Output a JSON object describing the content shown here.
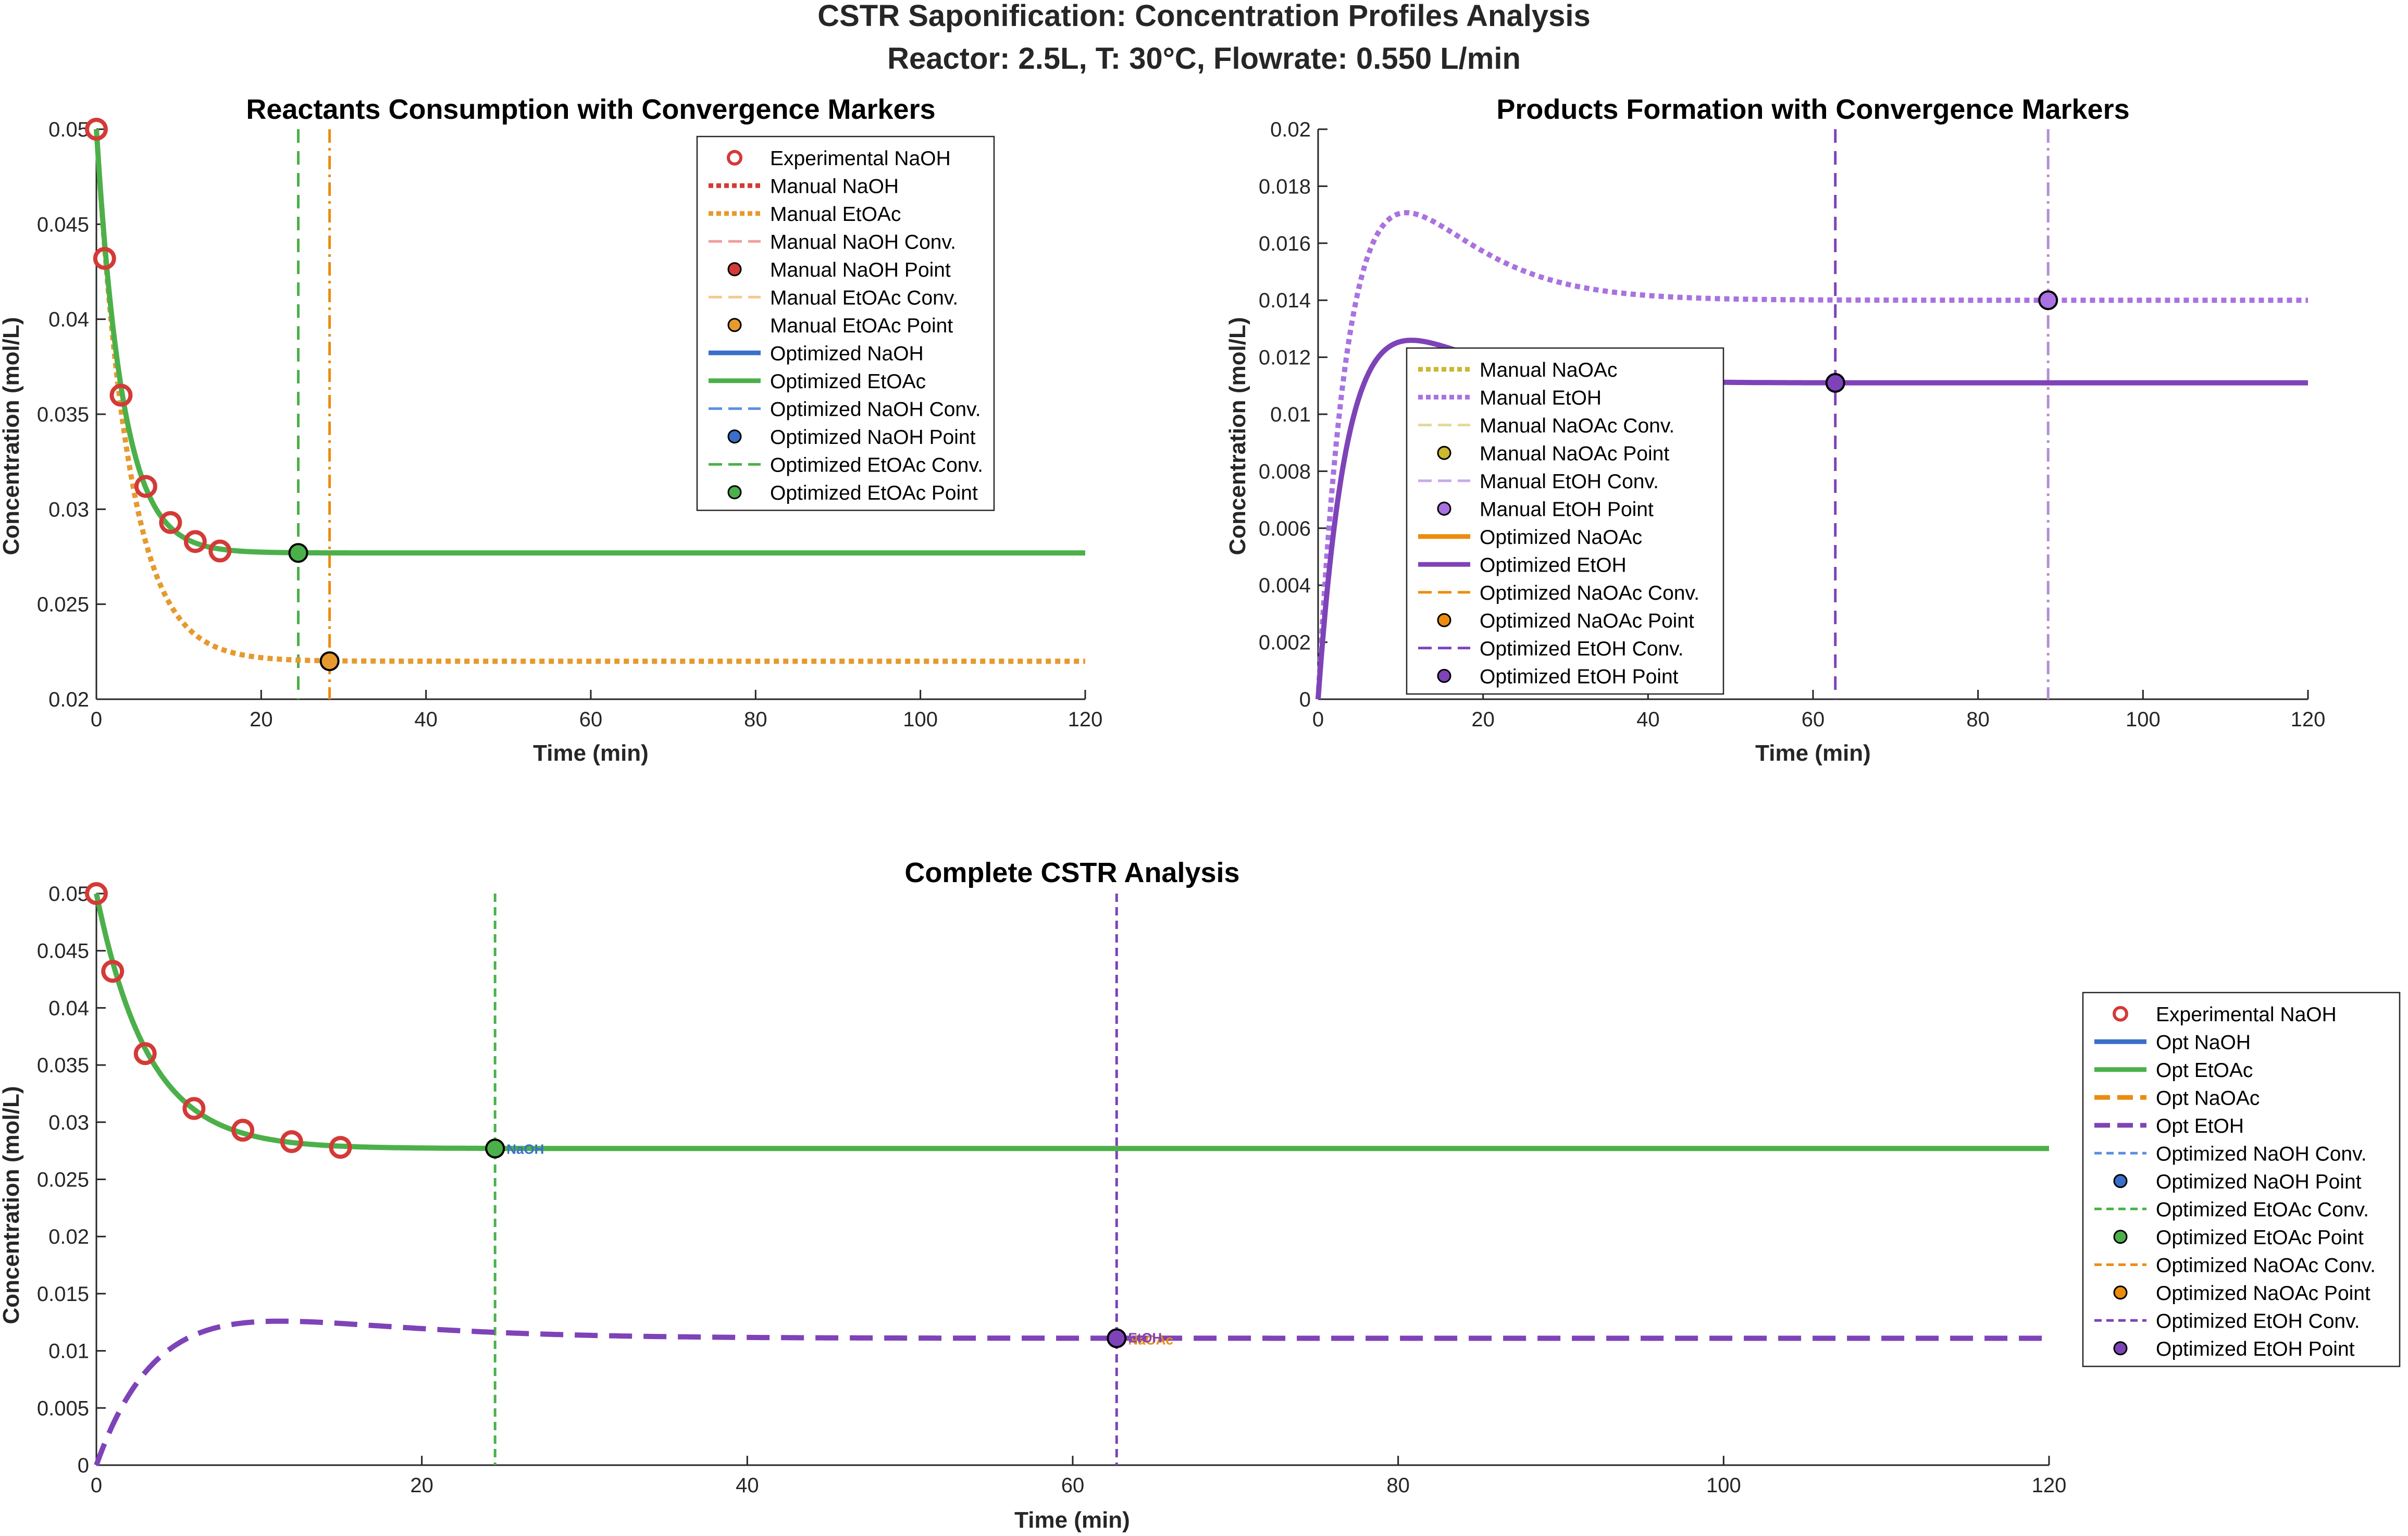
{
  "suptitle": {
    "line1": "CSTR Saponification: Concentration Profiles Analysis",
    "line2": "Reactor: 2.5L, T: 30°C, Flowrate: 0.550 L/min"
  },
  "colors": {
    "naoh": "#d43a37",
    "naoh_light": "#f09d9b",
    "etoac_manual": "#e69a2e",
    "etoac_manual_light": "#f2c98e",
    "naoac_manual": "#cbb730",
    "naoac_manual_light": "#e3d89a",
    "etoh_manual": "#a972e0",
    "etoh_manual_light": "#c9a8ec",
    "opt_naoh": "#3a6fc9",
    "opt_naoh_light": "#5b8fe0",
    "opt_etoac": "#4cb04a",
    "opt_naoac": "#eb8c0f",
    "opt_etoh": "#7e43b8",
    "opt_etoh_light": "#b48fcf"
  },
  "chart_data": [
    {
      "type": "line",
      "title": "Reactants Consumption with Convergence Markers",
      "xlabel": "Time (min)",
      "ylabel": "Concentration (mol/L)",
      "xlim": [
        0,
        120
      ],
      "ylim": [
        0.02,
        0.05
      ],
      "xticks": [
        0,
        20,
        40,
        60,
        80,
        100,
        120
      ],
      "yticks": [
        0.02,
        0.025,
        0.03,
        0.035,
        0.04,
        0.045,
        0.05
      ],
      "ytick_labels": [
        "0.02",
        "0.025",
        "0.03",
        "0.035",
        "0.04",
        "0.045",
        "0.05"
      ],
      "experimental_naoh": {
        "x": [
          0,
          1,
          3,
          6,
          9,
          12,
          15
        ],
        "y": [
          0.05,
          0.0432,
          0.036,
          0.0312,
          0.0293,
          0.0283,
          0.0278
        ]
      },
      "curves": {
        "optimized_etoac": {
          "c0": 0.05,
          "css": 0.0277,
          "tau": 3.2
        },
        "manual_etoac": {
          "c0": 0.05,
          "css": 0.022,
          "tau": 4.0
        }
      },
      "convergence": {
        "optimized_etoac": {
          "t": 24.5,
          "c": 0.0277
        },
        "manual_etoac": {
          "t": 28.3,
          "c": 0.022
        }
      },
      "legend": [
        "Experimental NaOH",
        "Manual NaOH",
        "Manual EtOAc",
        "Manual NaOH Conv.",
        "Manual NaOH Point",
        "Manual EtOAc Conv.",
        "Manual EtOAc Point",
        "Optimized NaOH",
        "Optimized EtOAc",
        "Optimized NaOH Conv.",
        "Optimized NaOH Point",
        "Optimized EtOAc Conv.",
        "Optimized EtOAc Point"
      ],
      "legend_placement": "top-right"
    },
    {
      "type": "line",
      "title": "Products Formation with Convergence Markers",
      "xlabel": "Time (min)",
      "ylabel": "Concentration (mol/L)",
      "xlim": [
        0,
        120
      ],
      "ylim": [
        0,
        0.02
      ],
      "xticks": [
        0,
        20,
        40,
        60,
        80,
        100,
        120
      ],
      "yticks": [
        0,
        0.002,
        0.004,
        0.006,
        0.008,
        0.01,
        0.012,
        0.014,
        0.016,
        0.018,
        0.02
      ],
      "ytick_labels": [
        "0",
        "0.002",
        "0.004",
        "0.006",
        "0.008",
        "0.01",
        "0.012",
        "0.014",
        "0.016",
        "0.018",
        "0.02"
      ],
      "curves": {
        "manual_etoh": {
          "css": 0.014,
          "peak": 0.0187,
          "tpeak": 6.5
        },
        "optimized_etoh": {
          "css": 0.0111,
          "peak": 0.0137,
          "tpeak": 6.2
        }
      },
      "convergence": {
        "optimized_etoh": {
          "t": 62.7,
          "c": 0.0111
        },
        "manual_etoh": {
          "t": 88.5,
          "c": 0.014
        }
      },
      "legend": [
        "Manual NaOAc",
        "Manual EtOH",
        "Manual NaOAc Conv.",
        "Manual NaOAc Point",
        "Manual EtOH Conv.",
        "Manual EtOH Point",
        "Optimized NaOAc",
        "Optimized EtOH",
        "Optimized NaOAc Conv.",
        "Optimized NaOAc Point",
        "Optimized EtOH Conv.",
        "Optimized EtOH Point"
      ],
      "legend_placement": "center-left"
    },
    {
      "type": "line",
      "title": "Complete CSTR Analysis",
      "xlabel": "Time (min)",
      "ylabel": "Concentration (mol/L)",
      "xlim": [
        0,
        120
      ],
      "ylim": [
        0,
        0.05
      ],
      "xticks": [
        0,
        20,
        40,
        60,
        80,
        100,
        120
      ],
      "yticks": [
        0,
        0.005,
        0.01,
        0.015,
        0.02,
        0.025,
        0.03,
        0.035,
        0.04,
        0.045,
        0.05
      ],
      "ytick_labels": [
        "0",
        "0.005",
        "0.01",
        "0.015",
        "0.02",
        "0.025",
        "0.03",
        "0.035",
        "0.04",
        "0.045",
        "0.05"
      ],
      "experimental_naoh": {
        "x": [
          0,
          1,
          3,
          6,
          9,
          12,
          15
        ],
        "y": [
          0.05,
          0.0432,
          0.036,
          0.0312,
          0.0293,
          0.0283,
          0.0278
        ]
      },
      "curves": {
        "opt_etoac": {
          "c0": 0.05,
          "css": 0.0277,
          "tau": 3.2
        },
        "opt_etoh": {
          "css": 0.0111,
          "peak": 0.0137,
          "tpeak": 6.2
        }
      },
      "convergence": {
        "opt_etoac": {
          "t": 24.5,
          "c": 0.0277
        },
        "opt_etoh": {
          "t": 62.7,
          "c": 0.0111
        }
      },
      "annotations": {
        "etoac_point": "NaOH",
        "etoh_point": "EtOH",
        "naoac_point": "NaOAc"
      },
      "legend": [
        "Experimental NaOH",
        "Opt NaOH",
        "Opt EtOAc",
        "Opt NaOAc",
        "Opt EtOH",
        "Optimized NaOH Conv.",
        "Optimized NaOH Point",
        "Optimized EtOAc Conv.",
        "Optimized EtOAc Point",
        "Optimized NaOAc Conv.",
        "Optimized NaOAc Point",
        "Optimized EtOH Conv.",
        "Optimized EtOH Point"
      ],
      "legend_placement": "right"
    }
  ]
}
